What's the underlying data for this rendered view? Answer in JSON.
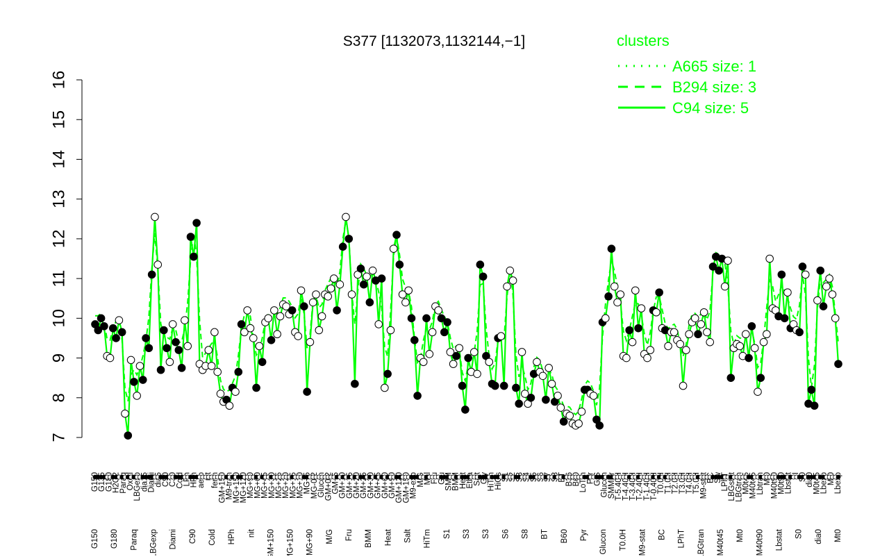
{
  "chart_data": {
    "type": "line",
    "title": "S377 [1132073,1132144,−1]",
    "xlabel": "",
    "ylabel": "",
    "ylim": [
      7,
      16
    ],
    "yticks": [
      7,
      8,
      9,
      10,
      11,
      12,
      13,
      14,
      15,
      16
    ],
    "legend": {
      "title": "clusters",
      "placement": "top-right",
      "color": "#00ff00",
      "entries": [
        {
          "label": "A665 size: 1",
          "style": "dotted"
        },
        {
          "label": "B294 size: 3",
          "style": "dashed"
        },
        {
          "label": "C94 size: 5",
          "style": "solid"
        }
      ]
    },
    "series_color": "#00ff00",
    "x_labels_upper": [
      "G150",
      "G135",
      "G180",
      "H2O2",
      "Paraq",
      "Oxctl",
      "LBGexp",
      "dia15",
      "Diami",
      "dia5",
      "C90",
      "C30",
      "Cold",
      "LPh",
      "HPh",
      "aero",
      "nit",
      "ferm",
      "GM+150",
      "M9-tran",
      "MG+150",
      "MG+120",
      "MG+90",
      "MG+60",
      "MG+45",
      "MG+30",
      "MG+25",
      "MG+20",
      "MG+15",
      "MG+10",
      "MG+5",
      "MG-0.2",
      "Glucon",
      "GM+0.2",
      "GM+5",
      "GM+10",
      "GM+15",
      "GM+20",
      "GM+25",
      "GM+30",
      "GM+45",
      "GM+60",
      "GM+90",
      "GM+120",
      "GM+150",
      "M9-exp",
      "M/G",
      "Mal",
      "Fru",
      "Glu",
      "SMM",
      "BMM",
      "Heat",
      "Etha",
      "Salt",
      "Gly",
      "HiTm",
      "HiOs",
      "S1",
      "S2",
      "S3",
      "S4",
      "S5",
      "S6",
      "S7",
      "S8",
      "BT",
      "B36",
      "B60",
      "LoTm",
      "Pyr",
      "G/S",
      "Glucon",
      "SMMPr",
      "T-5.40H",
      "T-4.40H",
      "T-3.40H",
      "T-2.40H",
      "T-1.40H",
      "T-0.40H",
      "T0.0H",
      "T1.0H",
      "T2.0H",
      "T3.0H",
      "T4.0H",
      "T5.0H",
      "M9-stat",
      "BC",
      "Sw",
      "LPhT",
      "LBGstat",
      "LBGtran",
      "M0t45",
      "M40t45",
      "Lbtran",
      "Mt0",
      "M40t90",
      "M0t90",
      "Lbstat",
      "BI",
      "S0",
      "dia0",
      "M0t45",
      "Lbexp",
      "Mt0",
      "Lbexp"
    ],
    "x_labels_lower": [
      "G150",
      "G180",
      "Paraq",
      "LBGexp",
      "Diami",
      "C90",
      "Cold",
      "HPh",
      "nit",
      "GM+150",
      "MG+150",
      "MG+90",
      "M/G",
      "Fru",
      "BMM",
      "Heat",
      "Salt",
      "HiTm",
      "S1",
      "S3",
      "S3",
      "S6",
      "S8",
      "BT",
      "B60",
      "Pyr",
      "Glucon",
      "T0.0H",
      "M9-stat",
      "BC",
      "LPhT",
      "LBGtran",
      "M40t45",
      "Mt0",
      "M40t90",
      "Lbstat",
      "S0",
      "dia0",
      "Mt0"
    ],
    "points": [
      {
        "x": 1,
        "y": 9.85
      },
      {
        "x": 2,
        "y": 9.7
      },
      {
        "x": 3,
        "y": 10.0
      },
      {
        "x": 4,
        "y": 9.8
      },
      {
        "x": 5,
        "y": 9.05
      },
      {
        "x": 6,
        "y": 9.0
      },
      {
        "x": 7,
        "y": 9.75
      },
      {
        "x": 8,
        "y": 9.5
      },
      {
        "x": 9,
        "y": 9.95
      },
      {
        "x": 10,
        "y": 9.65
      },
      {
        "x": 11,
        "y": 7.6
      },
      {
        "x": 12,
        "y": 7.05
      },
      {
        "x": 13,
        "y": 8.95
      },
      {
        "x": 14,
        "y": 8.4
      },
      {
        "x": 15,
        "y": 8.05
      },
      {
        "x": 16,
        "y": 8.8
      },
      {
        "x": 17,
        "y": 8.45
      },
      {
        "x": 18,
        "y": 9.5
      },
      {
        "x": 19,
        "y": 9.25
      },
      {
        "x": 20,
        "y": 11.1
      },
      {
        "x": 21,
        "y": 12.55
      },
      {
        "x": 22,
        "y": 11.35
      },
      {
        "x": 23,
        "y": 8.7
      },
      {
        "x": 24,
        "y": 9.7
      },
      {
        "x": 25,
        "y": 9.25
      },
      {
        "x": 26,
        "y": 8.9
      },
      {
        "x": 27,
        "y": 9.85
      },
      {
        "x": 28,
        "y": 9.4
      },
      {
        "x": 29,
        "y": 9.2
      },
      {
        "x": 30,
        "y": 8.75
      },
      {
        "x": 31,
        "y": 9.95
      },
      {
        "x": 32,
        "y": 9.3
      },
      {
        "x": 33,
        "y": 12.05
      },
      {
        "x": 34,
        "y": 11.55
      },
      {
        "x": 35,
        "y": 12.4
      },
      {
        "x": 36,
        "y": 8.85
      },
      {
        "x": 37,
        "y": 8.7
      },
      {
        "x": 38,
        "y": 8.8
      },
      {
        "x": 39,
        "y": 9.2
      },
      {
        "x": 40,
        "y": 8.8
      },
      {
        "x": 41,
        "y": 9.65
      },
      {
        "x": 42,
        "y": 8.65
      },
      {
        "x": 43,
        "y": 8.1
      },
      {
        "x": 44,
        "y": 7.9
      },
      {
        "x": 45,
        "y": 7.95
      },
      {
        "x": 46,
        "y": 7.8
      },
      {
        "x": 47,
        "y": 8.25
      },
      {
        "x": 48,
        "y": 8.15
      },
      {
        "x": 49,
        "y": 8.65
      },
      {
        "x": 50,
        "y": 9.85
      },
      {
        "x": 51,
        "y": 9.65
      },
      {
        "x": 52,
        "y": 10.2
      },
      {
        "x": 53,
        "y": 9.75
      },
      {
        "x": 54,
        "y": 9.5
      },
      {
        "x": 55,
        "y": 8.25
      },
      {
        "x": 56,
        "y": 9.3
      },
      {
        "x": 57,
        "y": 8.9
      },
      {
        "x": 58,
        "y": 9.9
      },
      {
        "x": 59,
        "y": 10.0
      },
      {
        "x": 60,
        "y": 9.45
      },
      {
        "x": 61,
        "y": 10.2
      },
      {
        "x": 62,
        "y": 9.6
      },
      {
        "x": 63,
        "y": 10.05
      },
      {
        "x": 64,
        "y": 10.35
      },
      {
        "x": 65,
        "y": 10.3
      },
      {
        "x": 66,
        "y": 10.1
      },
      {
        "x": 67,
        "y": 10.2
      },
      {
        "x": 68,
        "y": 9.65
      },
      {
        "x": 69,
        "y": 9.55
      },
      {
        "x": 70,
        "y": 10.7
      },
      {
        "x": 71,
        "y": 10.3
      },
      {
        "x": 72,
        "y": 8.15
      },
      {
        "x": 73,
        "y": 9.4
      },
      {
        "x": 74,
        "y": 10.4
      },
      {
        "x": 75,
        "y": 10.6
      },
      {
        "x": 76,
        "y": 9.7
      },
      {
        "x": 77,
        "y": 10.05
      },
      {
        "x": 78,
        "y": 10.6
      },
      {
        "x": 79,
        "y": 10.55
      },
      {
        "x": 80,
        "y": 10.75
      },
      {
        "x": 81,
        "y": 11.0
      },
      {
        "x": 82,
        "y": 10.2
      },
      {
        "x": 83,
        "y": 10.85
      },
      {
        "x": 84,
        "y": 11.8
      },
      {
        "x": 85,
        "y": 12.55
      },
      {
        "x": 86,
        "y": 12.0
      },
      {
        "x": 87,
        "y": 10.6
      },
      {
        "x": 88,
        "y": 8.35
      },
      {
        "x": 89,
        "y": 11.1
      },
      {
        "x": 90,
        "y": 11.25
      },
      {
        "x": 91,
        "y": 10.85
      },
      {
        "x": 92,
        "y": 11.05
      },
      {
        "x": 93,
        "y": 10.4
      },
      {
        "x": 94,
        "y": 11.2
      },
      {
        "x": 95,
        "y": 10.95
      },
      {
        "x": 96,
        "y": 9.85
      },
      {
        "x": 97,
        "y": 11.0
      },
      {
        "x": 98,
        "y": 8.25
      },
      {
        "x": 99,
        "y": 8.6
      },
      {
        "x": 100,
        "y": 9.7
      },
      {
        "x": 101,
        "y": 11.75
      },
      {
        "x": 102,
        "y": 12.1
      },
      {
        "x": 103,
        "y": 11.35
      },
      {
        "x": 104,
        "y": 10.6
      },
      {
        "x": 105,
        "y": 10.4
      },
      {
        "x": 106,
        "y": 10.7
      },
      {
        "x": 107,
        "y": 10.0
      },
      {
        "x": 108,
        "y": 9.45
      },
      {
        "x": 109,
        "y": 8.05
      },
      {
        "x": 110,
        "y": 9.0
      },
      {
        "x": 111,
        "y": 8.9
      },
      {
        "x": 112,
        "y": 10.0
      },
      {
        "x": 113,
        "y": 9.1
      },
      {
        "x": 114,
        "y": 9.65
      },
      {
        "x": 115,
        "y": 10.3
      },
      {
        "x": 116,
        "y": 10.2
      },
      {
        "x": 117,
        "y": 10.0
      },
      {
        "x": 118,
        "y": 9.65
      },
      {
        "x": 119,
        "y": 9.9
      },
      {
        "x": 120,
        "y": 9.15
      },
      {
        "x": 121,
        "y": 8.85
      },
      {
        "x": 122,
        "y": 9.05
      },
      {
        "x": 123,
        "y": 9.25
      },
      {
        "x": 124,
        "y": 8.3
      },
      {
        "x": 125,
        "y": 7.7
      },
      {
        "x": 126,
        "y": 9.0
      },
      {
        "x": 127,
        "y": 8.65
      },
      {
        "x": 128,
        "y": 9.15
      },
      {
        "x": 129,
        "y": 8.6
      },
      {
        "x": 130,
        "y": 11.35
      },
      {
        "x": 131,
        "y": 11.05
      },
      {
        "x": 132,
        "y": 9.05
      },
      {
        "x": 133,
        "y": 8.9
      },
      {
        "x": 134,
        "y": 8.35
      },
      {
        "x": 135,
        "y": 8.3
      },
      {
        "x": 136,
        "y": 9.5
      },
      {
        "x": 137,
        "y": 9.55
      },
      {
        "x": 138,
        "y": 8.3
      },
      {
        "x": 139,
        "y": 10.8
      },
      {
        "x": 140,
        "y": 11.2
      },
      {
        "x": 141,
        "y": 10.95
      },
      {
        "x": 142,
        "y": 8.25
      },
      {
        "x": 143,
        "y": 7.85
      },
      {
        "x": 144,
        "y": 9.15
      },
      {
        "x": 145,
        "y": 8.1
      },
      {
        "x": 146,
        "y": 7.85
      },
      {
        "x": 147,
        "y": 8.0
      },
      {
        "x": 148,
        "y": 8.6
      },
      {
        "x": 149,
        "y": 8.9
      },
      {
        "x": 150,
        "y": 8.65
      },
      {
        "x": 151,
        "y": 8.55
      },
      {
        "x": 152,
        "y": 7.95
      },
      {
        "x": 153,
        "y": 8.75
      },
      {
        "x": 154,
        "y": 8.35
      },
      {
        "x": 155,
        "y": 7.9
      },
      {
        "x": 156,
        "y": 8.05
      },
      {
        "x": 157,
        "y": 7.75
      },
      {
        "x": 158,
        "y": 7.4
      },
      {
        "x": 159,
        "y": 7.6
      },
      {
        "x": 160,
        "y": 7.55
      },
      {
        "x": 161,
        "y": 7.35
      },
      {
        "x": 162,
        "y": 7.3
      },
      {
        "x": 163,
        "y": 7.35
      },
      {
        "x": 164,
        "y": 7.65
      },
      {
        "x": 165,
        "y": 8.2
      },
      {
        "x": 166,
        "y": 8.2
      },
      {
        "x": 167,
        "y": 8.1
      },
      {
        "x": 168,
        "y": 8.05
      },
      {
        "x": 169,
        "y": 7.45
      },
      {
        "x": 170,
        "y": 7.3
      },
      {
        "x": 171,
        "y": 9.9
      },
      {
        "x": 172,
        "y": 10.0
      },
      {
        "x": 173,
        "y": 10.55
      },
      {
        "x": 174,
        "y": 11.75
      },
      {
        "x": 175,
        "y": 10.8
      },
      {
        "x": 176,
        "y": 10.4
      },
      {
        "x": 177,
        "y": 10.6
      },
      {
        "x": 178,
        "y": 9.05
      },
      {
        "x": 179,
        "y": 9.0
      },
      {
        "x": 180,
        "y": 9.7
      },
      {
        "x": 181,
        "y": 9.4
      },
      {
        "x": 182,
        "y": 10.7
      },
      {
        "x": 183,
        "y": 9.75
      },
      {
        "x": 184,
        "y": 10.25
      },
      {
        "x": 185,
        "y": 9.1
      },
      {
        "x": 186,
        "y": 9.0
      },
      {
        "x": 187,
        "y": 9.2
      },
      {
        "x": 188,
        "y": 10.2
      },
      {
        "x": 189,
        "y": 10.15
      },
      {
        "x": 190,
        "y": 10.65
      },
      {
        "x": 191,
        "y": 9.75
      },
      {
        "x": 192,
        "y": 9.7
      },
      {
        "x": 193,
        "y": 9.3
      },
      {
        "x": 194,
        "y": 9.65
      },
      {
        "x": 195,
        "y": 9.65
      },
      {
        "x": 196,
        "y": 9.45
      },
      {
        "x": 197,
        "y": 9.35
      },
      {
        "x": 198,
        "y": 8.3
      },
      {
        "x": 199,
        "y": 9.2
      },
      {
        "x": 200,
        "y": 9.6
      },
      {
        "x": 201,
        "y": 9.9
      },
      {
        "x": 202,
        "y": 10.0
      },
      {
        "x": 203,
        "y": 9.6
      },
      {
        "x": 204,
        "y": 9.85
      },
      {
        "x": 205,
        "y": 10.15
      },
      {
        "x": 206,
        "y": 9.65
      },
      {
        "x": 207,
        "y": 9.4
      },
      {
        "x": 208,
        "y": 11.3
      },
      {
        "x": 209,
        "y": 11.55
      },
      {
        "x": 210,
        "y": 11.2
      },
      {
        "x": 211,
        "y": 11.5
      },
      {
        "x": 212,
        "y": 10.8
      },
      {
        "x": 213,
        "y": 11.45
      },
      {
        "x": 214,
        "y": 8.5
      },
      {
        "x": 215,
        "y": 9.25
      },
      {
        "x": 216,
        "y": 9.35
      },
      {
        "x": 217,
        "y": 9.3
      },
      {
        "x": 218,
        "y": 9.05
      },
      {
        "x": 219,
        "y": 9.6
      },
      {
        "x": 220,
        "y": 9.0
      },
      {
        "x": 221,
        "y": 9.8
      },
      {
        "x": 222,
        "y": 9.25
      },
      {
        "x": 223,
        "y": 8.15
      },
      {
        "x": 224,
        "y": 8.5
      },
      {
        "x": 225,
        "y": 9.4
      },
      {
        "x": 226,
        "y": 9.6
      },
      {
        "x": 227,
        "y": 11.5
      },
      {
        "x": 228,
        "y": 10.25
      },
      {
        "x": 229,
        "y": 10.2
      },
      {
        "x": 230,
        "y": 10.05
      },
      {
        "x": 231,
        "y": 11.1
      },
      {
        "x": 232,
        "y": 10.0
      },
      {
        "x": 233,
        "y": 10.65
      },
      {
        "x": 234,
        "y": 9.75
      },
      {
        "x": 235,
        "y": 9.85
      },
      {
        "x": 236,
        "y": 9.7
      },
      {
        "x": 237,
        "y": 9.65
      },
      {
        "x": 238,
        "y": 11.3
      },
      {
        "x": 239,
        "y": 11.1
      },
      {
        "x": 240,
        "y": 7.85
      },
      {
        "x": 241,
        "y": 8.2
      },
      {
        "x": 242,
        "y": 7.8
      },
      {
        "x": 243,
        "y": 10.45
      },
      {
        "x": 244,
        "y": 11.2
      },
      {
        "x": 245,
        "y": 10.3
      },
      {
        "x": 246,
        "y": 10.8
      },
      {
        "x": 247,
        "y": 11.0
      },
      {
        "x": 248,
        "y": 10.6
      },
      {
        "x": 249,
        "y": 10.0
      },
      {
        "x": 250,
        "y": 8.85
      }
    ],
    "open_marker_xs": [
      5,
      6,
      9,
      11,
      13,
      15,
      16,
      21,
      22,
      26,
      27,
      31,
      32,
      36,
      37,
      38,
      39,
      40,
      41,
      42,
      43,
      44,
      46,
      48,
      51,
      52,
      53,
      54,
      56,
      58,
      59,
      61,
      62,
      63,
      64,
      65,
      66,
      68,
      69,
      70,
      73,
      74,
      75,
      76,
      77,
      78,
      79,
      80,
      81,
      83,
      85,
      87,
      89,
      92,
      94,
      96,
      98,
      100,
      101,
      104,
      105,
      106,
      110,
      111,
      113,
      114,
      115,
      116,
      120,
      121,
      123,
      127,
      128,
      129,
      133,
      137,
      139,
      140,
      141,
      144,
      145,
      146,
      149,
      150,
      151,
      153,
      154,
      156,
      157,
      159,
      160,
      161,
      162,
      163,
      164,
      167,
      168,
      172,
      175,
      176,
      177,
      178,
      179,
      181,
      182,
      184,
      185,
      186,
      187,
      189,
      191,
      193,
      194,
      195,
      196,
      197,
      198,
      199,
      200,
      201,
      202,
      204,
      205,
      206,
      207,
      212,
      213,
      215,
      216,
      217,
      218,
      219,
      222,
      223,
      225,
      226,
      227,
      228,
      229,
      233,
      235,
      236,
      239,
      243,
      246,
      247,
      248,
      249
    ]
  }
}
